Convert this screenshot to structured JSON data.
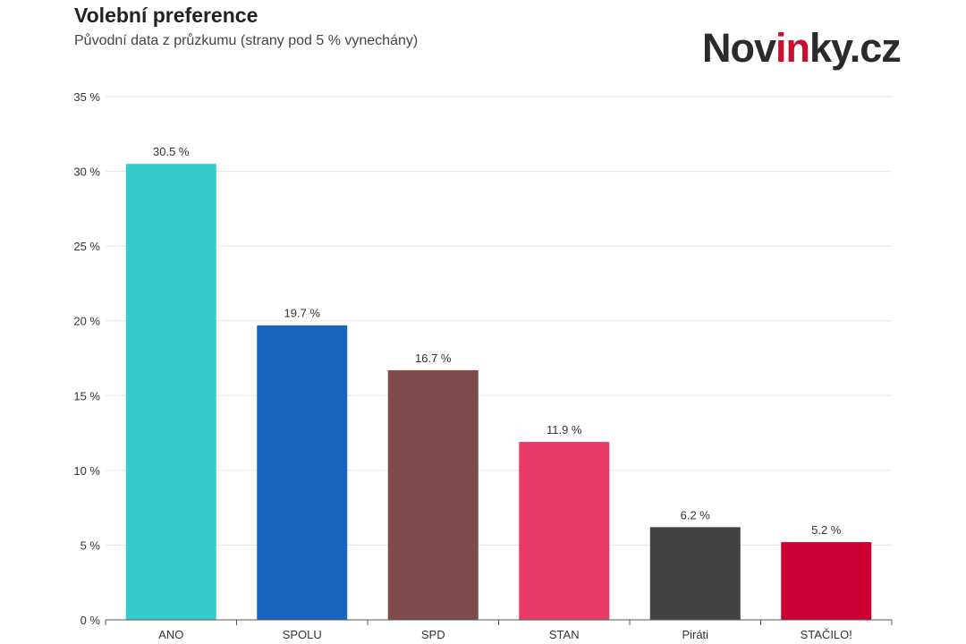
{
  "header": {
    "title": "Volební preference",
    "subtitle": "Původní data z průzkumu (strany pod 5 % vynechány)"
  },
  "brand": {
    "part1": "Nov",
    "accent": "in",
    "part2": "ky.cz",
    "accent_color": "#c8102e"
  },
  "chart_data": {
    "type": "bar",
    "categories": [
      "ANO",
      "SPOLU",
      "SPD",
      "STAN",
      "Piráti",
      "STAČILO!"
    ],
    "values": [
      30.5,
      19.7,
      16.7,
      11.9,
      6.2,
      5.2
    ],
    "value_labels": [
      "30.5 %",
      "19.7 %",
      "16.7 %",
      "11.9 %",
      "6.2 %",
      "5.2 %"
    ],
    "colors": [
      "#36cbcb",
      "#1a64c0",
      "#7f4b4b",
      "#e83a66",
      "#424242",
      "#cc0033"
    ],
    "ylim": [
      0,
      35
    ],
    "yticks": [
      0,
      5,
      10,
      15,
      20,
      25,
      30,
      35
    ],
    "ytick_labels": [
      "0 %",
      "5 %",
      "10 %",
      "15 %",
      "20 %",
      "25 %",
      "30 %",
      "35 %"
    ],
    "grid": true,
    "xlabel": "",
    "ylabel": ""
  }
}
